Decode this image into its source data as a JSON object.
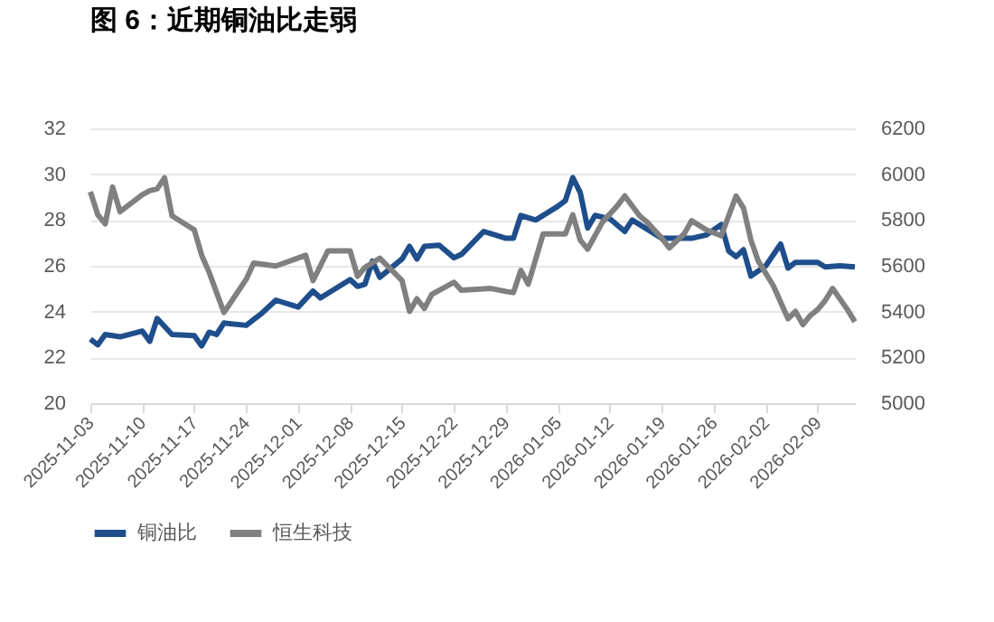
{
  "chart_data": {
    "type": "line",
    "title": "图 6：近期铜油比走弱",
    "xlim": [
      "2025-11-03",
      "2026-02-14"
    ],
    "xticks": [
      "2025-11-03",
      "2025-11-10",
      "2025-11-17",
      "2025-11-24",
      "2025-12-01",
      "2025-12-08",
      "2025-12-15",
      "2025-12-22",
      "2025-12-29",
      "2026-01-05",
      "2026-01-12",
      "2026-01-19",
      "2026-01-26",
      "2026-02-02",
      "2026-02-09"
    ],
    "ylim": [
      20,
      32
    ],
    "yticks": [
      20,
      22,
      24,
      26,
      28,
      30,
      32
    ],
    "y2lim": [
      5000,
      6200
    ],
    "y2ticks": [
      5000,
      5200,
      5400,
      5600,
      5800,
      6000,
      6200
    ],
    "grid": "y",
    "legend": "bottom",
    "line_style": "solid",
    "marker": "none",
    "series": [
      {
        "name": "铜油比",
        "color": "#1f4e8c",
        "x": [
          "2025-11-03",
          "2025-11-04",
          "2025-11-05",
          "2025-11-07",
          "2025-11-10",
          "2025-11-11",
          "2025-11-12",
          "2025-11-14",
          "2025-11-17",
          "2025-11-18",
          "2025-11-19",
          "2025-11-20",
          "2025-11-21",
          "2025-11-24",
          "2025-11-26",
          "2025-11-28",
          "2025-12-01",
          "2025-12-03",
          "2025-12-04",
          "2025-12-08",
          "2025-12-09",
          "2025-12-10",
          "2025-12-11",
          "2025-12-12",
          "2025-12-15",
          "2025-12-16",
          "2025-12-17",
          "2025-12-18",
          "2025-12-20",
          "2025-12-22",
          "2025-12-23",
          "2025-12-26",
          "2025-12-29",
          "2025-12-30",
          "2025-12-31",
          "2026-01-02",
          "2026-01-05",
          "2026-01-06",
          "2026-01-07",
          "2026-01-08",
          "2026-01-09",
          "2026-01-10",
          "2026-01-12",
          "2026-01-14",
          "2026-01-15",
          "2026-01-19",
          "2026-01-23",
          "2026-01-25",
          "2026-01-27",
          "2026-01-28",
          "2026-01-29",
          "2026-01-30",
          "2026-01-31",
          "2026-02-02",
          "2026-02-04",
          "2026-02-05",
          "2026-02-06",
          "2026-02-09",
          "2026-02-10",
          "2026-02-12",
          "2026-02-14"
        ],
        "values": [
          22.8,
          22.55,
          23.0,
          22.9,
          23.15,
          22.7,
          23.7,
          23.0,
          22.95,
          22.5,
          23.1,
          23.0,
          23.5,
          23.4,
          23.9,
          24.5,
          24.2,
          24.9,
          24.6,
          25.4,
          25.1,
          25.2,
          26.2,
          25.5,
          26.3,
          26.85,
          26.3,
          26.85,
          26.9,
          26.35,
          26.5,
          27.5,
          27.2,
          27.2,
          28.2,
          28.0,
          28.6,
          28.85,
          29.85,
          29.2,
          27.65,
          28.2,
          28.05,
          27.5,
          28.0,
          27.2,
          27.2,
          27.35,
          27.8,
          26.65,
          26.4,
          26.7,
          25.55,
          26.0,
          26.95,
          25.9,
          26.15,
          26.15,
          25.95,
          26.0,
          25.95
        ]
      },
      {
        "name": "恒生科技",
        "color": "#808080",
        "axis": "y2",
        "x": [
          "2025-11-03",
          "2025-11-04",
          "2025-11-05",
          "2025-11-06",
          "2025-11-07",
          "2025-11-10",
          "2025-11-11",
          "2025-11-12",
          "2025-11-13",
          "2025-11-14",
          "2025-11-17",
          "2025-11-18",
          "2025-11-19",
          "2025-11-21",
          "2025-11-24",
          "2025-11-25",
          "2025-11-28",
          "2025-12-02",
          "2025-12-03",
          "2025-12-05",
          "2025-12-08",
          "2025-12-09",
          "2025-12-10",
          "2025-12-12",
          "2025-12-15",
          "2025-12-16",
          "2025-12-17",
          "2025-12-18",
          "2025-12-19",
          "2025-12-22",
          "2025-12-23",
          "2025-12-27",
          "2025-12-29",
          "2025-12-30",
          "2025-12-31",
          "2026-01-01",
          "2026-01-03",
          "2026-01-06",
          "2026-01-07",
          "2026-01-08",
          "2026-01-09",
          "2026-01-11",
          "2026-01-13",
          "2026-01-14",
          "2026-01-16",
          "2026-01-17",
          "2026-01-19",
          "2026-01-20",
          "2026-01-22",
          "2026-01-23",
          "2026-01-25",
          "2026-01-27",
          "2026-01-29",
          "2026-01-30",
          "2026-01-31",
          "2026-02-01",
          "2026-02-03",
          "2026-02-05",
          "2026-02-06",
          "2026-02-07",
          "2026-02-08",
          "2026-02-09",
          "2026-02-10",
          "2026-02-11",
          "2026-02-13",
          "2026-02-14"
        ],
        "values": [
          5923,
          5823,
          5783,
          5944,
          5836,
          5910,
          5928,
          5936,
          5984,
          5818,
          5757,
          5646,
          5572,
          5396,
          5541,
          5612,
          5599,
          5646,
          5535,
          5665,
          5665,
          5554,
          5593,
          5633,
          5535,
          5401,
          5456,
          5414,
          5475,
          5528,
          5493,
          5501,
          5488,
          5483,
          5580,
          5520,
          5739,
          5739,
          5823,
          5712,
          5673,
          5791,
          5862,
          5905,
          5818,
          5791,
          5720,
          5678,
          5739,
          5797,
          5757,
          5731,
          5905,
          5852,
          5712,
          5620,
          5514,
          5369,
          5401,
          5343,
          5383,
          5409,
          5448,
          5501,
          5409,
          5356
        ]
      }
    ]
  }
}
